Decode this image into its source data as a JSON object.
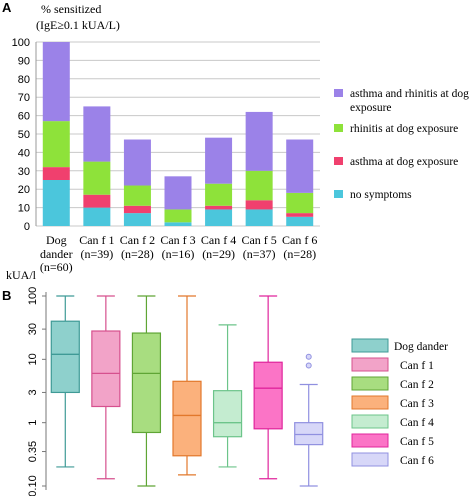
{
  "panel_a_letter": "A",
  "panel_b_letter": "B",
  "chart_data": [
    {
      "type": "bar",
      "stacked": true,
      "ylabel_line1": "% sensitized",
      "ylabel_line2": "(IgE≥0.1 kUA/L)",
      "ylim": [
        0,
        100
      ],
      "yticks": [
        0,
        10,
        20,
        30,
        40,
        50,
        60,
        70,
        80,
        90,
        100
      ],
      "grid": true,
      "legend_position": "right",
      "categories": [
        {
          "name": "Dog",
          "name2": "dander",
          "n": "(n=60)"
        },
        {
          "name": "Can f 1",
          "name2": "",
          "n": "(n=39)"
        },
        {
          "name": "Can f 2",
          "name2": "",
          "n": "(n=28)"
        },
        {
          "name": "Can f 3",
          "name2": "",
          "n": "(n=16)"
        },
        {
          "name": "Can f 4",
          "name2": "",
          "n": "(n=29)"
        },
        {
          "name": "Can f 5",
          "name2": "",
          "n": "(n=37)"
        },
        {
          "name": "Can f 6",
          "name2": "",
          "n": "(n=28)"
        }
      ],
      "series": [
        {
          "name": "no symptoms",
          "color": "#4bc6dc",
          "values": [
            25,
            10,
            7,
            2,
            9,
            9,
            5
          ]
        },
        {
          "name": "asthma at dog exposure",
          "color": "#f0406e",
          "values": [
            7,
            7,
            4,
            0,
            2,
            5,
            2
          ]
        },
        {
          "name": "rhinitis at dog exposure",
          "color": "#8ee23a",
          "values": [
            25,
            18,
            11,
            7,
            12,
            16,
            11
          ]
        },
        {
          "name": "asthma and rhinitis at dog exposure",
          "color": "#9b82e8",
          "values": [
            43,
            30,
            25,
            18,
            25,
            32,
            29
          ]
        }
      ],
      "legend": [
        {
          "line1": "asthma and rhinitis at dog",
          "line2": "exposure",
          "color": "#9b82e8"
        },
        {
          "line1": "rhinitis at dog exposure",
          "line2": "",
          "color": "#8ee23a"
        },
        {
          "line1": "asthma at dog exposure",
          "line2": "",
          "color": "#f0406e"
        },
        {
          "line1": "no symptoms",
          "line2": "",
          "color": "#4bc6dc"
        }
      ]
    },
    {
      "type": "box",
      "ylabel": "kUA/l",
      "yscale": "log",
      "ylim": [
        0.1,
        100
      ],
      "yticks": [
        {
          "value": 100,
          "label": "100"
        },
        {
          "value": 30,
          "label": "30"
        },
        {
          "value": 10,
          "label": "10"
        },
        {
          "value": 3,
          "label": "3"
        },
        {
          "value": 1,
          "label": "1"
        },
        {
          "value": 0.35,
          "label": "0.35"
        },
        {
          "value": 0.1,
          "label": "0.10"
        }
      ],
      "legend_position": "right",
      "series": [
        {
          "name": "Dog dander",
          "fill": "#8ed0cc",
          "stroke": "#3f9a96",
          "min": 0.2,
          "q1": 3,
          "median": 12,
          "q3": 40,
          "max": 100,
          "outliers": []
        },
        {
          "name": "Can f 1",
          "fill": "#f2a3c8",
          "stroke": "#d6508e",
          "min": 0.13,
          "q1": 1.8,
          "median": 6,
          "q3": 28,
          "max": 100,
          "outliers": []
        },
        {
          "name": "Can f 2",
          "fill": "#a8dd80",
          "stroke": "#5fa535",
          "min": 0.1,
          "q1": 0.7,
          "median": 6,
          "q3": 26,
          "max": 100,
          "outliers": []
        },
        {
          "name": "Can f 3",
          "fill": "#fbb17c",
          "stroke": "#e2782c",
          "min": 0.15,
          "q1": 0.3,
          "median": 1.3,
          "q3": 4.5,
          "max": 100,
          "outliers": []
        },
        {
          "name": "Can f 4",
          "fill": "#c4ecd0",
          "stroke": "#6cc48a",
          "min": 0.2,
          "q1": 0.6,
          "median": 1,
          "q3": 3.2,
          "max": 35,
          "outliers": []
        },
        {
          "name": "Can f 5",
          "fill": "#fb74c6",
          "stroke": "#e0259c",
          "min": 0.13,
          "q1": 0.8,
          "median": 3.5,
          "q3": 9,
          "max": 100,
          "outliers": []
        },
        {
          "name": "Can f 6",
          "fill": "#d7d7f8",
          "stroke": "#9090e0",
          "min": 0.1,
          "q1": 0.45,
          "median": 0.65,
          "q3": 1,
          "max": 4,
          "outliers": [
            8,
            11
          ]
        }
      ]
    }
  ]
}
